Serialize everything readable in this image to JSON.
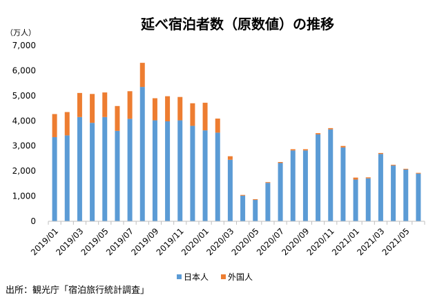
{
  "chart_data": {
    "type": "stacked-bar",
    "title": "延べ宿泊者数（原数値）の推移",
    "unit_label": "（万人）",
    "ylim": [
      0,
      7000
    ],
    "y_ticks": [
      0,
      1000,
      2000,
      3000,
      4000,
      5000,
      6000,
      7000
    ],
    "y_tick_labels": [
      "0",
      "1,000",
      "2,000",
      "3,000",
      "4,000",
      "5,000",
      "6,000",
      "7,000"
    ],
    "categories": [
      "2019/01",
      "2019/02",
      "2019/03",
      "2019/04",
      "2019/05",
      "2019/06",
      "2019/07",
      "2019/08",
      "2019/09",
      "2019/10",
      "2019/11",
      "2019/12",
      "2020/01",
      "2020/02",
      "2020/03",
      "2020/04",
      "2020/05",
      "2020/06",
      "2020/07",
      "2020/08",
      "2020/09",
      "2020/10",
      "2020/11",
      "2020/12",
      "2021/01",
      "2021/02",
      "2021/03",
      "2021/04",
      "2021/05",
      "2021/06"
    ],
    "x_tick_labels": [
      "2019/01",
      "2019/03",
      "2019/05",
      "2019/07",
      "2019/09",
      "2019/11",
      "2020/01",
      "2020/03",
      "2020/05",
      "2020/07",
      "2020/09",
      "2020/11",
      "2021/01",
      "2021/03",
      "2021/05"
    ],
    "series": [
      {
        "name": "日本人",
        "color": "#5b9bd5",
        "values": [
          3350,
          3420,
          4150,
          3920,
          4150,
          3600,
          4080,
          5350,
          4020,
          3980,
          4020,
          3800,
          3620,
          3530,
          2450,
          1020,
          850,
          1530,
          2320,
          2820,
          2820,
          3460,
          3660,
          2940,
          1660,
          1710,
          2680,
          2220,
          2060,
          1900
        ]
      },
      {
        "name": "外国人",
        "color": "#ed7d31",
        "values": [
          920,
          930,
          960,
          1150,
          980,
          990,
          1100,
          960,
          880,
          1000,
          930,
          900,
          1100,
          560,
          140,
          30,
          30,
          30,
          40,
          50,
          50,
          50,
          50,
          60,
          80,
          40,
          40,
          30,
          30,
          30
        ]
      }
    ]
  },
  "source": "出所：観光庁「宿泊旅行統計調査」"
}
